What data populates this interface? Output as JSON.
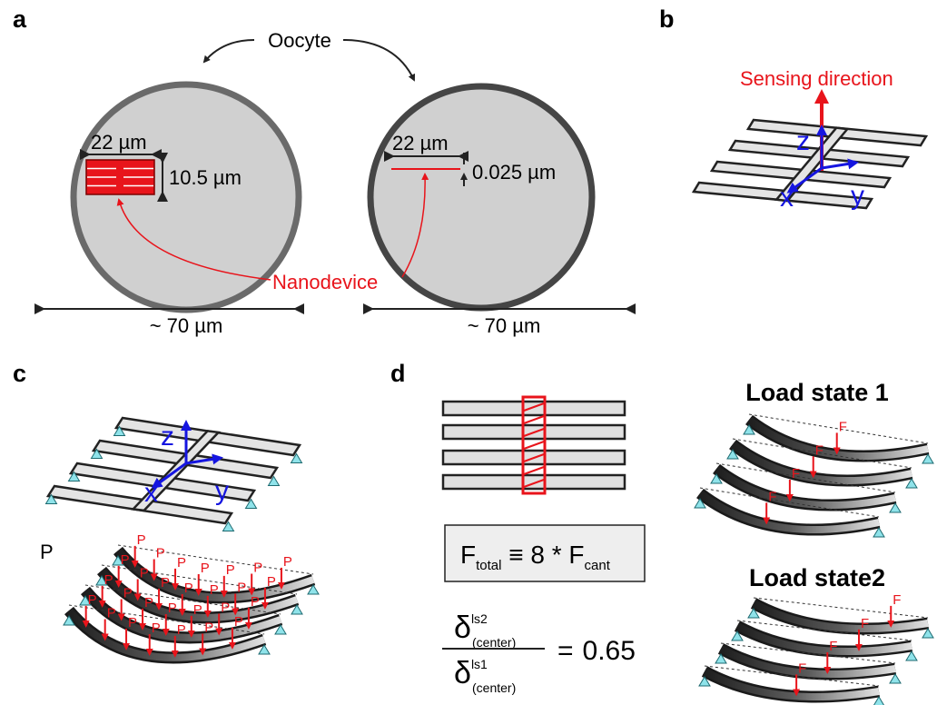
{
  "panel_labels": {
    "a": "a",
    "b": "b",
    "c": "c",
    "d": "d"
  },
  "panel_a": {
    "oocyte_label": "Oocyte",
    "left": {
      "width": "22 µm",
      "height": "10.5 µm",
      "diameter": "~ 70 µm"
    },
    "right": {
      "width": "22 µm",
      "thickness": "0.025 µm",
      "diameter": "~ 70 µm"
    },
    "device_label": "Nanodevice"
  },
  "panel_b": {
    "sensing_direction": "Sensing direction",
    "axes": {
      "z": "z",
      "x": "x",
      "y": "y"
    }
  },
  "panel_c": {
    "axes": {
      "z": "z",
      "x": "x",
      "y": "y"
    },
    "load_label": "P"
  },
  "panel_d": {
    "formula": {
      "lhs": "F",
      "lhs_sub": "total",
      "op": " ≡ 8 * ",
      "rhs": "F",
      "rhs_sub": "cant"
    },
    "ratio": {
      "num": "δ",
      "num_sup": "ls2",
      "num_sub": "(center)",
      "den": "δ",
      "den_sup": "ls1",
      "den_sub": "(center)",
      "equals": "=",
      "value": 0.65
    },
    "load_state_1": "Load state 1",
    "load_state_2": "Load state2",
    "force_label": "F"
  }
}
